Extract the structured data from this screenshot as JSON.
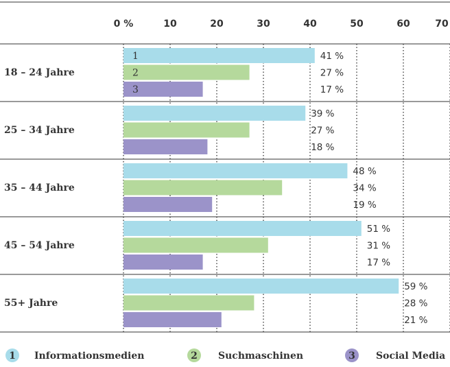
{
  "chart_data": {
    "type": "bar",
    "orientation": "horizontal",
    "categories": [
      "18 – 24 Jahre",
      "25 – 34 Jahre",
      "35 – 44 Jahre",
      "45 – 54 Jahre",
      "55+ Jahre"
    ],
    "series": [
      {
        "name": "Informationsmedien",
        "label": "1",
        "color": "#a8dcea",
        "values": [
          41,
          39,
          48,
          51,
          59
        ],
        "value_labels": [
          "41 %",
          "39 %",
          "48 %",
          "51 %",
          "59 %"
        ]
      },
      {
        "name": "Suchmaschinen",
        "label": "2",
        "color": "#b5d99c",
        "values": [
          27,
          27,
          34,
          31,
          28
        ],
        "value_labels": [
          "27 %",
          "27 %",
          "34 %",
          "31 %",
          "28 %"
        ]
      },
      {
        "name": "Social Media",
        "label": "3",
        "color": "#9b93c9",
        "values": [
          17,
          18,
          19,
          17,
          21
        ],
        "value_labels": [
          "17 %",
          "18 %",
          "19 %",
          "17 %",
          "21 %"
        ]
      }
    ],
    "xlim": [
      0,
      70
    ],
    "xticks": [
      {
        "value": 0,
        "label": "0 %"
      },
      10,
      20,
      30,
      40,
      50,
      60,
      70
    ],
    "grid": true
  }
}
